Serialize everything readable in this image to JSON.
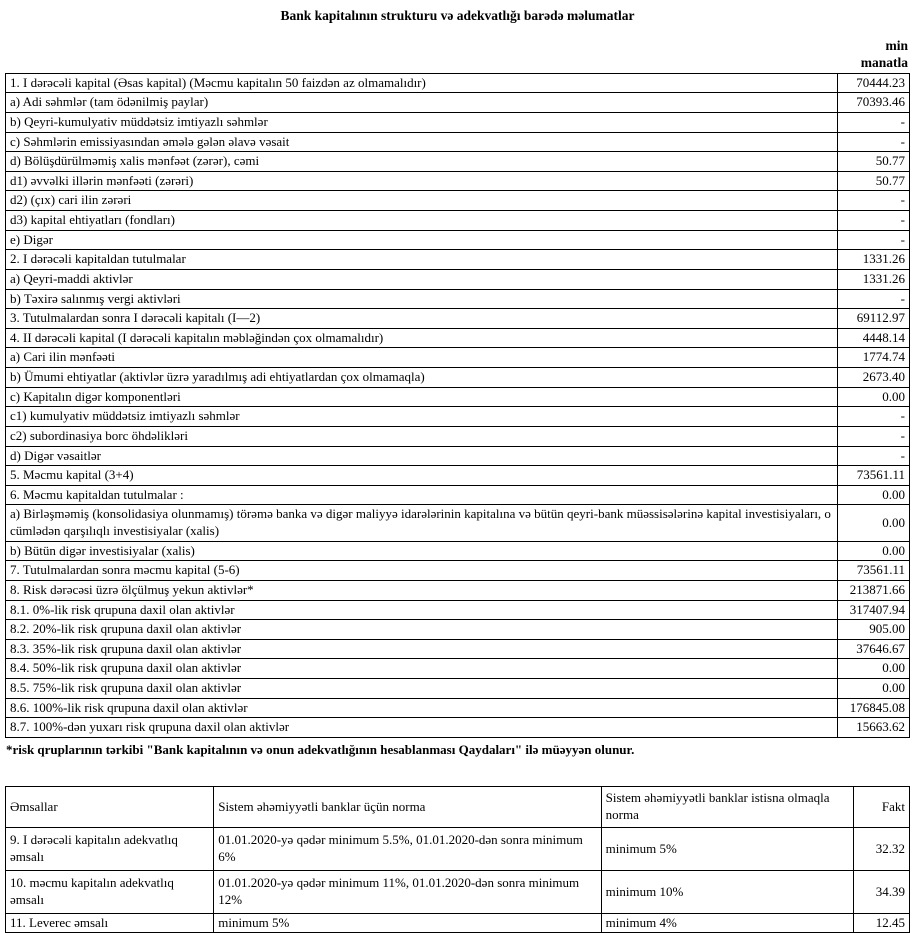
{
  "page": {
    "title": "Bank kapitalının strukturu və adekvatlığı barədə məlumatlar",
    "unit_line1": "min",
    "unit_line2": "manatla",
    "footnote": "*risk qruplarının tərkibi \"Bank kapitalının və onun adekvatlığının hesablanması Qaydaları\" ilə müəyyən olunur."
  },
  "capital_table": {
    "rows": [
      {
        "label": "1. I dərəcəli kapital (Əsas kapital) (Məcmu kapitalın 50 faizdən az olmamalıdır)",
        "value": "70444.23"
      },
      {
        "label": "a) Adi səhmlər (tam ödənilmiş paylar)",
        "value": "70393.46"
      },
      {
        "label": "b) Qeyri-kumulyativ müddətsiz imtiyazlı səhmlər",
        "value": "-"
      },
      {
        "label": "c) Səhmlərin emissiyasından əmələ gələn əlavə vəsait",
        "value": "-"
      },
      {
        "label": "d) Bölüşdürülməmiş xalis mənfəət (zərər), cəmi",
        "value": "50.77"
      },
      {
        "label": "d1) əvvəlki illərin mənfəəti (zərəri)",
        "value": "50.77"
      },
      {
        "label": "d2) (çıx) cari ilin zərəri",
        "value": "-"
      },
      {
        "label": "d3) kapital ehtiyatları (fondları)",
        "value": "-"
      },
      {
        "label": "e) Digər",
        "value": "-"
      },
      {
        "label": "2. I dərəcəli kapitaldan tutulmalar",
        "value": "1331.26"
      },
      {
        "label": "a) Qeyri-maddi aktivlər",
        "value": "1331.26"
      },
      {
        "label": "b) Təxirə salınmış vergi aktivləri",
        "value": "-"
      },
      {
        "label": "3. Tutulmalardan sonra I dərəcəli kapitalı (I—2)",
        "value": "69112.97"
      },
      {
        "label": "4. II dərəcəli kapital (I dərəcəli kapitalın məbləğindən çox olmamalıdır)",
        "value": "4448.14"
      },
      {
        "label": "a) Cari ilin mənfəəti",
        "value": "1774.74"
      },
      {
        "label": "b) Ümumi ehtiyatlar (aktivlər üzrə yaradılmış adi ehtiyatlardan çox olmamaqla)",
        "value": "2673.40"
      },
      {
        "label": "c) Kapitalın digər komponentləri",
        "value": "0.00"
      },
      {
        "label": "c1) kumulyativ müddətsiz imtiyazlı səhmlər",
        "value": "-"
      },
      {
        "label": "c2) subordinasiya borc öhdəlikləri",
        "value": "-"
      },
      {
        "label": "d) Digər vəsaitlər",
        "value": "-"
      },
      {
        "label": "5. Məcmu kapital (3+4)",
        "value": "73561.11"
      },
      {
        "label": "6. Məcmu kapitaldan tutulmalar :",
        "value": "0.00"
      },
      {
        "label": "a)  Birləşməmiş (konsolidasiya olunmamış) törəmə banka və digər maliyyə idarələrinin kapitalına və bütün qeyri-bank müəssisələrinə kapital investisiyaları, o cümlədən qarşılıqlı investisiyalar (xalis)",
        "value": "0.00"
      },
      {
        "label": "b) Bütün digər investisiyalar (xalis)",
        "value": "0.00"
      },
      {
        "label": "7. Tutulmalardan sonra məcmu kapital (5-6)",
        "value": "73561.11"
      },
      {
        "label": "8. Risk dərəcəsi üzrə ölçülmuş yekun aktivlər*",
        "value": "213871.66"
      },
      {
        "label": "8.1. 0%-lik risk qrupuna daxil olan aktivlər",
        "value": "317407.94"
      },
      {
        "label": "8.2. 20%-lik risk qrupuna daxil olan aktivlər",
        "value": "905.00"
      },
      {
        "label": "8.3. 35%-lik risk qrupuna daxil olan aktivlər",
        "value": "37646.67"
      },
      {
        "label": "8.4. 50%-lik risk qrupuna daxil olan aktivlər",
        "value": "0.00"
      },
      {
        "label": "8.5. 75%-lik risk qrupuna daxil olan aktivlər",
        "value": "0.00"
      },
      {
        "label": "8.6. 100%-lik risk qrupuna daxil olan aktivlər",
        "value": "176845.08"
      },
      {
        "label": "8.7. 100%-dən yuxarı risk qrupuna daxil olan aktivlər",
        "value": "15663.62"
      }
    ]
  },
  "ratios_table": {
    "headers": [
      "Əmsallar",
      "Sistem əhəmiyyətli banklar üçün norma",
      "Sistem əhəmiyyətli banklar istisna olmaqla norma",
      "Fakt"
    ],
    "rows": [
      {
        "label": "9. I dərəcəli kapitalın adekvatlıq əmsalı",
        "norm_systemic": "01.01.2020-yə qədər minimum 5.5%, 01.01.2020-dən sonra minimum 6%",
        "norm_non_systemic": "minimum 5%",
        "fact": "32.32"
      },
      {
        "label": "10. məcmu kapitalın adekvatlıq əmsalı",
        "norm_systemic": "01.01.2020-yə qədər minimum 11%, 01.01.2020-dən sonra minimum 12%",
        "norm_non_systemic": "minimum 10%",
        "fact": "34.39"
      },
      {
        "label": "11. Leverec əmsalı",
        "norm_systemic": "minimum 5%",
        "norm_non_systemic": "minimum 4%",
        "fact": "12.45"
      }
    ]
  }
}
